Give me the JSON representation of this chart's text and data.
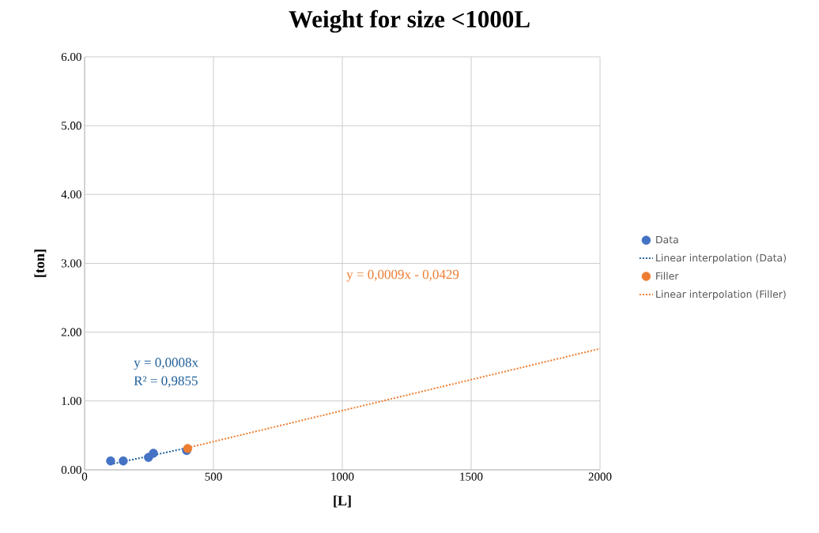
{
  "chart_data": {
    "type": "scatter",
    "title": "Weight for size <1000L",
    "xlabel": "[L]",
    "ylabel": "[ton]",
    "xlim": [
      0,
      2000
    ],
    "xticks": [
      0,
      500,
      1000,
      1500,
      2000
    ],
    "ylim": [
      0,
      6
    ],
    "yticks": [
      {
        "value": 0,
        "label": "0.00"
      },
      {
        "value": 1,
        "label": "1.00"
      },
      {
        "value": 2,
        "label": "2.00"
      },
      {
        "value": 3,
        "label": "3.00"
      },
      {
        "value": 4,
        "label": "4.00"
      },
      {
        "value": 5,
        "label": "5.00"
      },
      {
        "value": 6,
        "label": "6.00"
      }
    ],
    "grid": true,
    "legend": "right",
    "series": [
      {
        "name": "Data",
        "marker": "circle",
        "color": "#4472c4",
        "x": [
          101,
          150,
          248,
          267,
          396
        ],
        "values": [
          0.13,
          0.13,
          0.18,
          0.24,
          0.28
        ]
      },
      {
        "name": "Linear interpolation (Data)",
        "type": "line",
        "marker": "none",
        "line_style": "dotted",
        "color": "#1f5f9a",
        "x": [
          100,
          400
        ],
        "values": [
          0.08,
          0.32
        ]
      },
      {
        "name": "Filler",
        "marker": "circle",
        "color": "#ed7d31",
        "x": [
          400
        ],
        "values": [
          0.31
        ]
      },
      {
        "name": "Linear interpolation (Filler)",
        "type": "line",
        "marker": "none",
        "line_style": "dotted",
        "color": "#ed7d31",
        "x": [
          400,
          2000
        ],
        "values": [
          0.32,
          1.76
        ]
      }
    ],
    "annotations": [
      "y = 0,0008x",
      "R² = 0,9855",
      "y = 0,0009x - 0,0429"
    ]
  }
}
